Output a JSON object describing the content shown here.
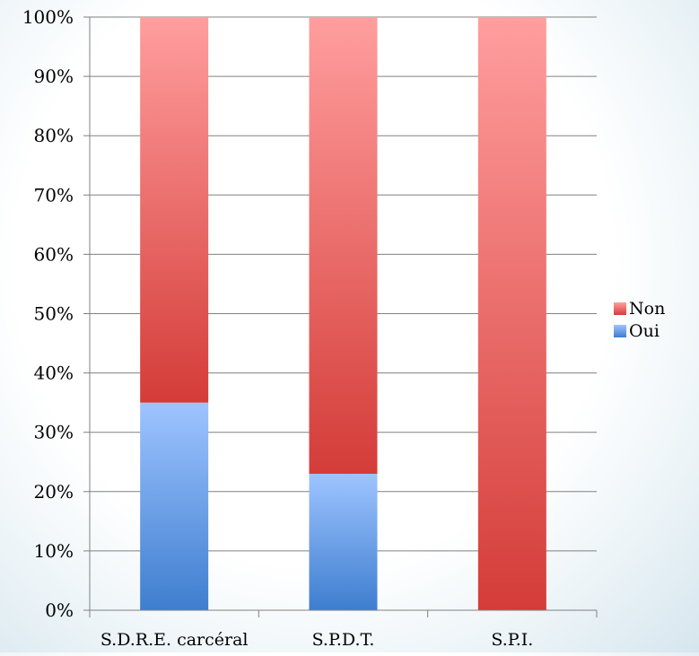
{
  "chart_data": {
    "type": "bar",
    "stacked": true,
    "percent_scale": true,
    "categories": [
      "S.D.R.E. carcéral",
      "S.P.D.T.",
      "S.P.I."
    ],
    "series": [
      {
        "name": "Oui",
        "values": [
          35,
          23,
          0
        ],
        "color": "#4a86d4"
      },
      {
        "name": "Non",
        "values": [
          65,
          77,
          100
        ],
        "color": "#e0504e"
      }
    ],
    "ylim": [
      0,
      100
    ],
    "yticks": [
      "0%",
      "10%",
      "20%",
      "30%",
      "40%",
      "50%",
      "60%",
      "70%",
      "80%",
      "90%",
      "100%"
    ],
    "grid": true,
    "legend_position": "right"
  },
  "colors": {
    "oui_light": "#9ec4ff",
    "oui_dark": "#3e7ecf",
    "non_light": "#ff9e9e",
    "non_dark": "#d43c38",
    "grid": "#808080"
  }
}
